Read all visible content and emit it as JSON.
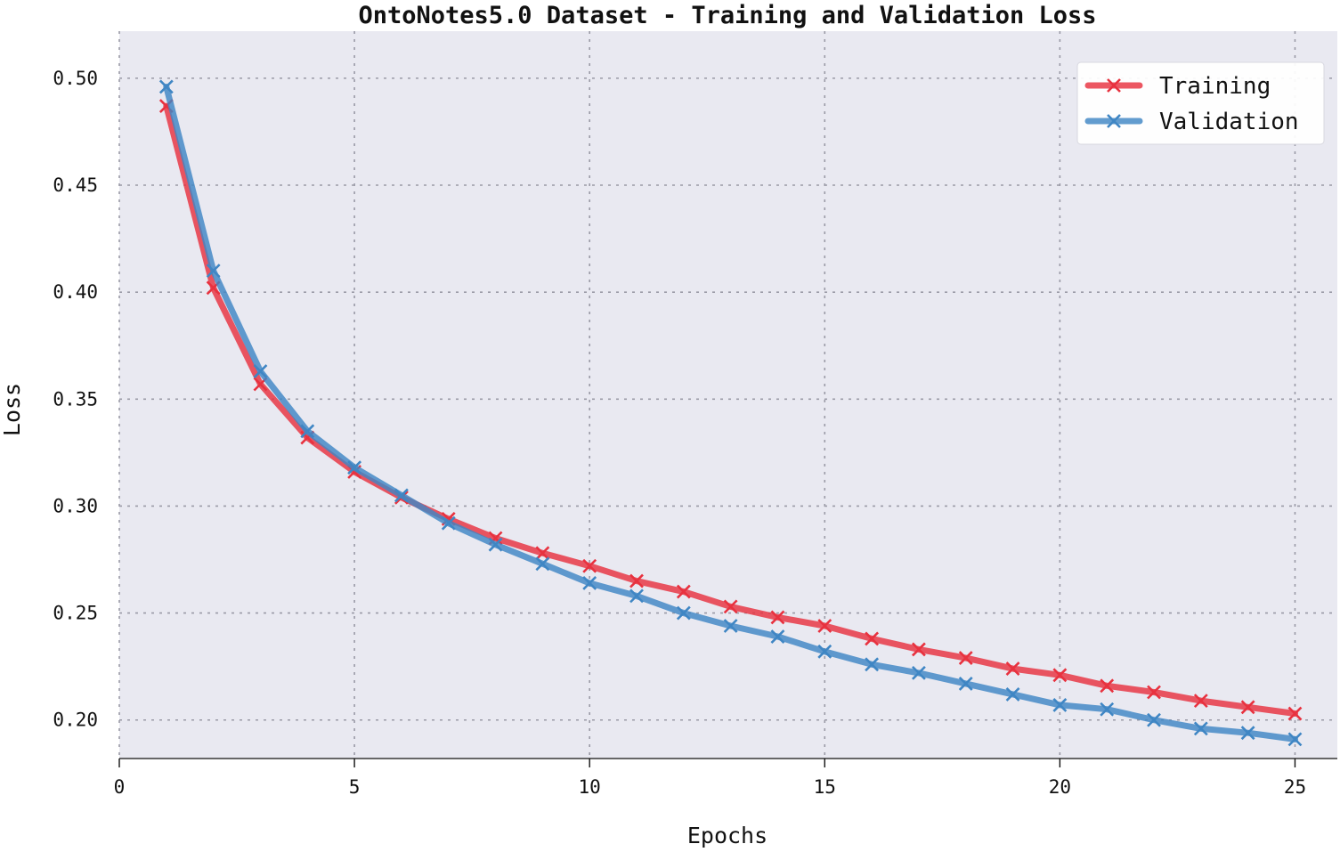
{
  "chart_data": {
    "type": "line",
    "title": "OntoNotes5.0 Dataset - Training and Validation Loss",
    "xlabel": "Epochs",
    "ylabel": "Loss",
    "xlim": [
      0,
      25.9
    ],
    "ylim": [
      0.182,
      0.522
    ],
    "xticks": [
      0,
      5,
      10,
      15,
      20,
      25
    ],
    "xtick_labels": [
      "0",
      "5",
      "10",
      "15",
      "20",
      "25"
    ],
    "yticks": [
      0.2,
      0.25,
      0.3,
      0.35,
      0.4,
      0.45,
      0.5
    ],
    "ytick_labels": [
      "0.20",
      "0.25",
      "0.30",
      "0.35",
      "0.40",
      "0.45",
      "0.50"
    ],
    "grid": true,
    "legend_position": "top-right",
    "marker": "x",
    "x": [
      1,
      2,
      3,
      4,
      5,
      6,
      7,
      8,
      9,
      10,
      11,
      12,
      13,
      14,
      15,
      16,
      17,
      18,
      19,
      20,
      21,
      22,
      23,
      24,
      25
    ],
    "series": [
      {
        "name": "Training",
        "color": "#e8323f",
        "values": [
          0.487,
          0.402,
          0.357,
          0.332,
          0.316,
          0.304,
          0.294,
          0.285,
          0.278,
          0.272,
          0.265,
          0.26,
          0.253,
          0.248,
          0.244,
          0.238,
          0.233,
          0.229,
          0.224,
          0.221,
          0.216,
          0.213,
          0.209,
          0.206,
          0.203
        ]
      },
      {
        "name": "Validation",
        "color": "#3f86c4",
        "values": [
          0.496,
          0.41,
          0.363,
          0.335,
          0.318,
          0.305,
          0.292,
          0.282,
          0.273,
          0.264,
          0.258,
          0.25,
          0.244,
          0.239,
          0.232,
          0.226,
          0.222,
          0.217,
          0.212,
          0.207,
          0.205,
          0.2,
          0.196,
          0.194,
          0.191
        ]
      }
    ]
  }
}
